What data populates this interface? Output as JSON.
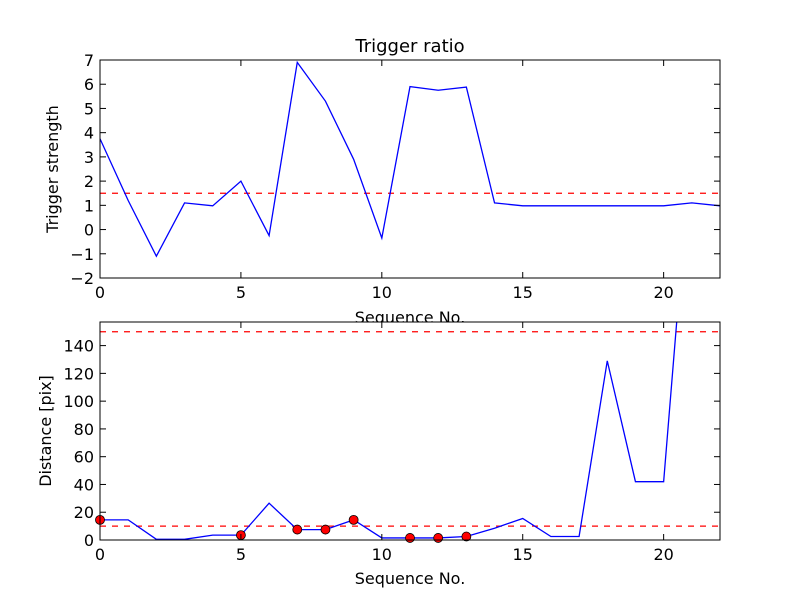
{
  "chart_data": [
    {
      "type": "line",
      "title": "Trigger ratio",
      "xlabel": "Sequence No.",
      "ylabel": "Trigger strength",
      "xlim": [
        0,
        22
      ],
      "ylim": [
        -2,
        7
      ],
      "xticks": [
        0,
        5,
        10,
        15,
        20
      ],
      "yticks": [
        -2,
        -1,
        0,
        1,
        2,
        3,
        4,
        5,
        6,
        7
      ],
      "xtick_labels": [
        "0",
        "5",
        "10",
        "15",
        "20"
      ],
      "ytick_labels": [
        "−2",
        "−1",
        "0",
        "1",
        "2",
        "3",
        "4",
        "5",
        "6",
        "7"
      ],
      "grid": false,
      "series": [
        {
          "color": "#0000ff",
          "x": [
            0,
            1,
            2,
            3,
            4,
            5,
            6,
            7,
            8,
            9,
            10,
            11,
            12,
            13,
            14,
            15,
            16,
            17,
            18,
            19,
            20,
            21,
            22
          ],
          "y": [
            3.75,
            1.2,
            -1.1,
            1.1,
            0.98,
            2.0,
            -0.25,
            6.9,
            5.3,
            2.9,
            -0.35,
            5.9,
            5.75,
            5.88,
            1.1,
            0.98,
            0.98,
            0.98,
            0.98,
            0.98,
            0.98,
            1.1,
            0.98
          ]
        }
      ],
      "hlines": [
        {
          "y": 1.5,
          "color": "#ff0000",
          "style": "dashed"
        }
      ]
    },
    {
      "type": "line",
      "title": "",
      "xlabel": "Sequence No.",
      "ylabel": "Distance [pix]",
      "xlim": [
        0,
        22
      ],
      "ylim": [
        0,
        157
      ],
      "xticks": [
        0,
        5,
        10,
        15,
        20
      ],
      "yticks": [
        0,
        20,
        40,
        60,
        80,
        100,
        120,
        140
      ],
      "xtick_labels": [
        "0",
        "5",
        "10",
        "15",
        "20"
      ],
      "ytick_labels": [
        "0",
        "20",
        "40",
        "60",
        "80",
        "100",
        "120",
        "140"
      ],
      "grid": false,
      "series": [
        {
          "color": "#0000ff",
          "x": [
            0,
            1,
            2,
            3,
            4,
            5,
            6,
            7,
            8,
            9,
            10,
            11,
            12,
            13,
            14,
            15,
            16,
            17,
            18,
            19,
            20,
            21
          ],
          "y": [
            14.5,
            14.5,
            0.5,
            0.5,
            3.5,
            3.5,
            26.5,
            7.5,
            7.5,
            14.5,
            1.5,
            1.5,
            1.5,
            2.5,
            8.5,
            15.5,
            2.5,
            2.5,
            129,
            42,
            42,
            290
          ]
        }
      ],
      "markers": {
        "color": "#ff0000",
        "x": [
          0,
          5,
          7,
          8,
          9,
          11,
          12,
          13
        ],
        "y": [
          14.5,
          3.5,
          7.5,
          7.5,
          14.5,
          1.5,
          1.5,
          2.5
        ]
      },
      "hlines": [
        {
          "y": 10,
          "color": "#ff0000",
          "style": "dashed"
        },
        {
          "y": 150,
          "color": "#ff0000",
          "style": "dashed"
        }
      ]
    }
  ]
}
